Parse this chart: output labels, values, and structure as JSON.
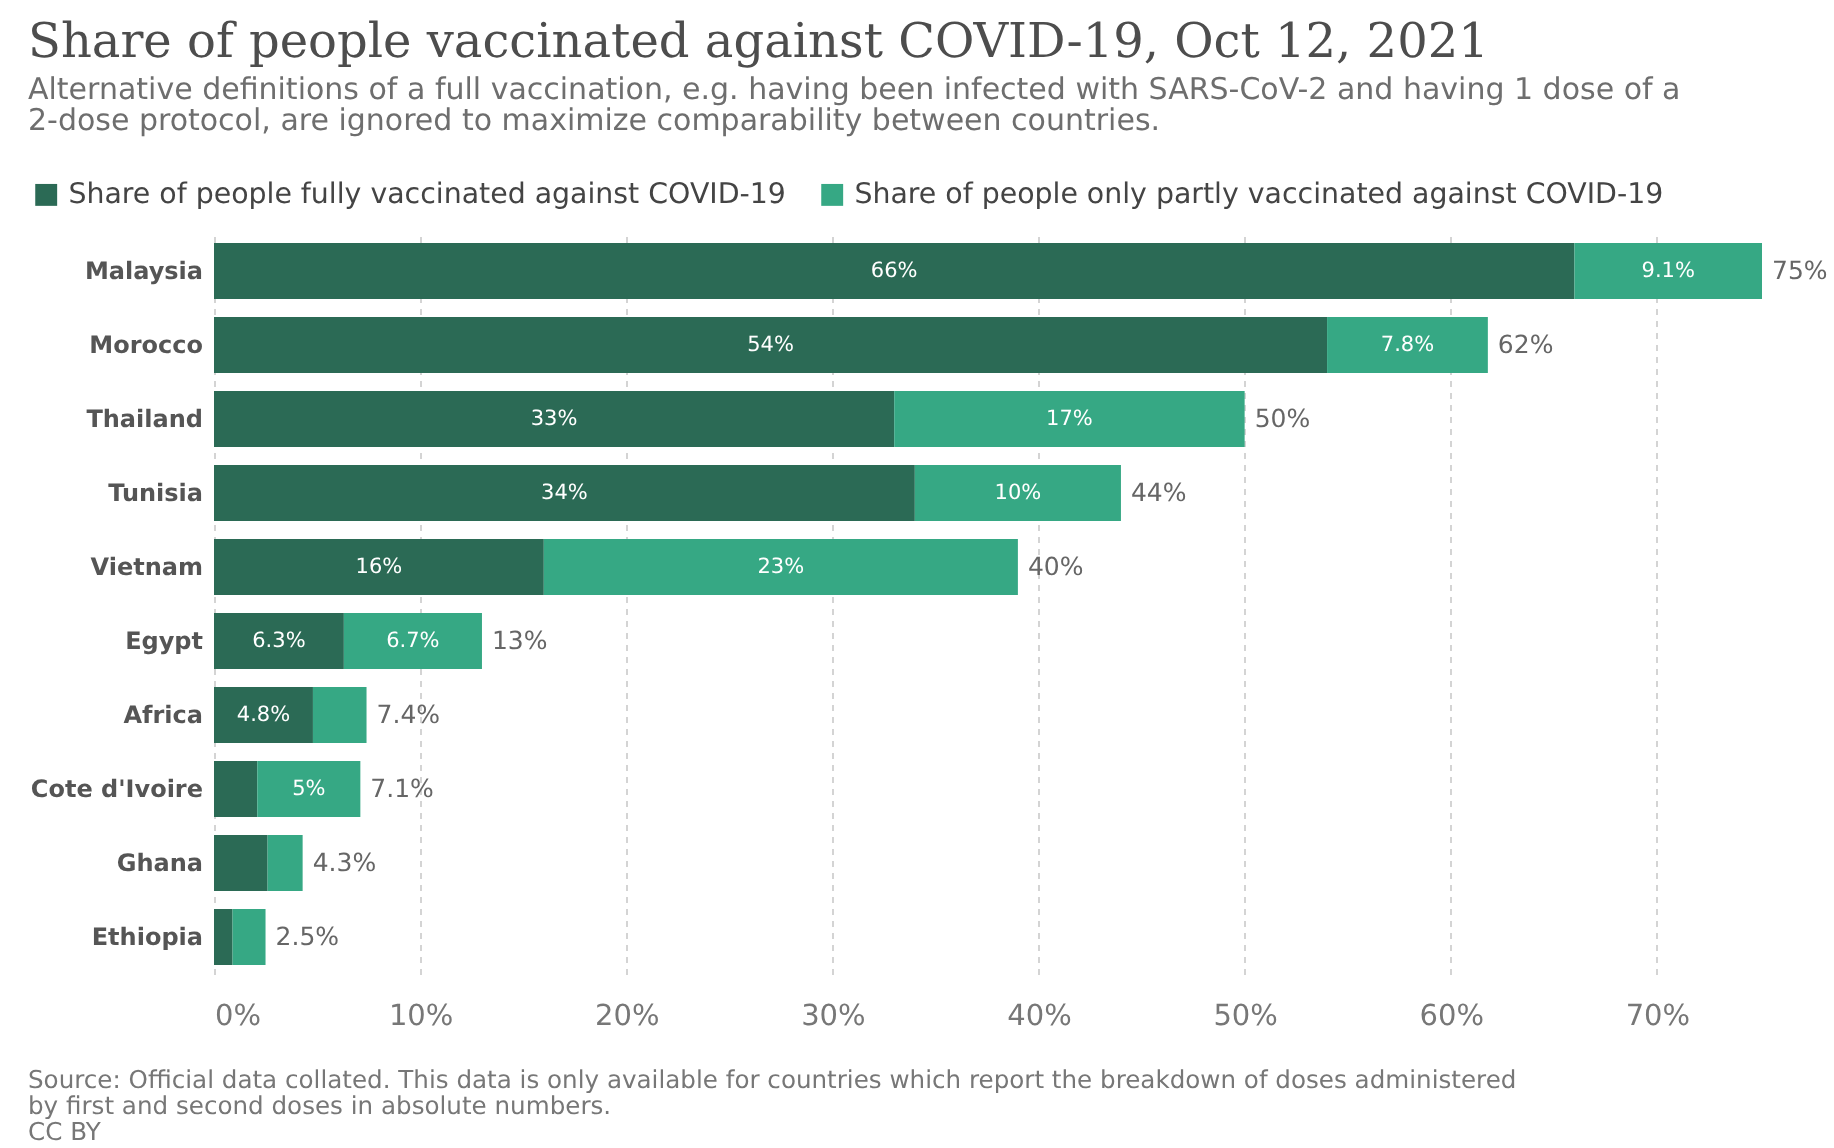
{
  "chart_data": {
    "type": "bar",
    "orientation": "horizontal",
    "stacked": true,
    "title": "Share of people vaccinated against COVID-19, Oct 12, 2021",
    "subtitle": "Alternative definitions of a full vaccination, e.g. having been infected with SARS-CoV-2 and having 1 dose of a 2-dose protocol, are ignored to maximize comparability between countries.",
    "categories": [
      "Malaysia",
      "Morocco",
      "Thailand",
      "Tunisia",
      "Vietnam",
      "Egypt",
      "Africa",
      "Cote d'Ivoire",
      "Ghana",
      "Ethiopia"
    ],
    "series": [
      {
        "name": "Share of people fully vaccinated against COVID-19",
        "color": "#2b6a55",
        "values": [
          66,
          54,
          33,
          34,
          16,
          6.3,
          4.8,
          2.1,
          2.6,
          0.9
        ],
        "value_labels": [
          "66%",
          "54%",
          "33%",
          "34%",
          "16%",
          "6.3%",
          "4.8%",
          null,
          null,
          null
        ]
      },
      {
        "name": "Share of people only partly vaccinated against COVID-19",
        "color": "#36a884",
        "values": [
          9.1,
          7.8,
          17,
          10,
          23,
          6.7,
          2.6,
          5,
          1.7,
          1.6
        ],
        "value_labels": [
          "9.1%",
          "7.8%",
          "17%",
          "10%",
          "23%",
          "6.7%",
          null,
          "5%",
          null,
          null
        ]
      }
    ],
    "totals": [
      "75%",
      "62%",
      "50%",
      "44%",
      "40%",
      "13%",
      "7.4%",
      "7.1%",
      "4.3%",
      "2.5%"
    ],
    "xlim": [
      0,
      75.1
    ],
    "xticks": [
      {
        "value": 0,
        "label": "0%"
      },
      {
        "value": 10,
        "label": "10%"
      },
      {
        "value": 20,
        "label": "20%"
      },
      {
        "value": 30,
        "label": "30%"
      },
      {
        "value": 40,
        "label": "40%"
      },
      {
        "value": 50,
        "label": "50%"
      },
      {
        "value": 60,
        "label": "60%"
      },
      {
        "value": 70,
        "label": "70%"
      }
    ],
    "grid": "x",
    "legend": "top",
    "annotations": [
      "Source: Official data collated. This data is only available for countries which report the breakdown of doses administered by first and second doses in absolute numbers.",
      "CC BY"
    ]
  }
}
